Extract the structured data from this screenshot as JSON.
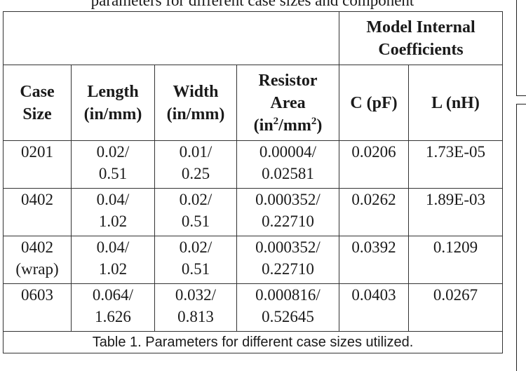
{
  "top_fragment": "parameters for different case sizes and component",
  "table": {
    "group_header": [
      "Model Internal",
      "Coefficients"
    ],
    "columns": [
      {
        "lines": [
          "Case",
          "Size"
        ]
      },
      {
        "lines": [
          "Length",
          "(in/mm)"
        ]
      },
      {
        "lines": [
          "Width",
          "(in/mm)"
        ]
      },
      {
        "lines": [
          "Resistor",
          "Area"
        ],
        "unit_base": "(in",
        "unit_sup1": "2",
        "unit_mid": "/mm",
        "unit_sup2": "2",
        "unit_end": ")"
      },
      {
        "lines": [
          "C (pF)"
        ]
      },
      {
        "lines": [
          "L (nH)"
        ]
      }
    ],
    "rows": [
      {
        "case": [
          "0201"
        ],
        "length": [
          "0.02/",
          "0.51"
        ],
        "width": [
          "0.01/",
          "0.25"
        ],
        "area": [
          "0.00004/",
          "0.02581"
        ],
        "c": "0.0206",
        "l": "1.73E-05"
      },
      {
        "case": [
          "0402"
        ],
        "length": [
          "0.04/",
          "1.02"
        ],
        "width": [
          "0.02/",
          "0.51"
        ],
        "area": [
          "0.000352/",
          "0.22710"
        ],
        "c": "0.0262",
        "l": "1.89E-03"
      },
      {
        "case": [
          "0402",
          "(wrap)"
        ],
        "length": [
          "0.04/",
          "1.02"
        ],
        "width": [
          "0.02/",
          "0.51"
        ],
        "area": [
          "0.000352/",
          "0.22710"
        ],
        "c": "0.0392",
        "l": "0.1209"
      },
      {
        "case": [
          "0603"
        ],
        "length": [
          "0.064/",
          "1.626"
        ],
        "width": [
          "0.032/",
          "0.813"
        ],
        "area": [
          "0.000816/",
          "0.52645"
        ],
        "c": "0.0403",
        "l": "0.0267"
      }
    ],
    "caption": "Table 1.  Parameters for different case sizes utilized."
  }
}
